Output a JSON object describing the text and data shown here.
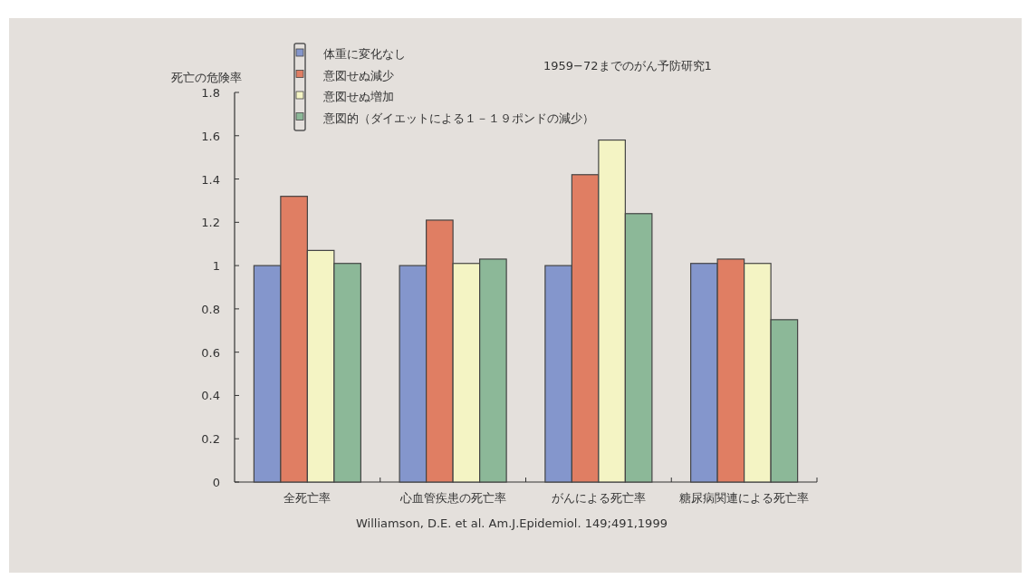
{
  "chart_data": {
    "type": "bar",
    "ylabel": "死亡の危険率",
    "categories": [
      "全死亡率",
      "心血管疾患の死亡率",
      "がんによる死亡率",
      "糖尿病関連による死亡率"
    ],
    "series": [
      {
        "name": "体重に変化なし",
        "color": "#8496cc",
        "values": [
          1.0,
          1.0,
          1.0,
          1.01
        ]
      },
      {
        "name": "意図せぬ減少",
        "color": "#e07e63",
        "values": [
          1.32,
          1.21,
          1.42,
          1.03
        ]
      },
      {
        "name": "意図せぬ増加",
        "color": "#f4f4c4",
        "values": [
          1.07,
          1.01,
          1.58,
          1.01
        ]
      },
      {
        "name": "意図的（ダイエットによる１－１９ポンドの減少）",
        "color": "#8cb898",
        "values": [
          1.01,
          1.03,
          1.24,
          0.75
        ]
      }
    ],
    "ylim": [
      0,
      1.8
    ],
    "yticks": [
      0,
      0.2,
      0.4,
      0.6,
      0.8,
      1,
      1.2,
      1.4,
      1.6,
      1.8
    ],
    "legend": "top left",
    "annotations": [
      "1959−72までのがん予防研究1",
      "Williamson, D.E. et al. Am.J.Epidemiol. 149;491,1999"
    ]
  }
}
